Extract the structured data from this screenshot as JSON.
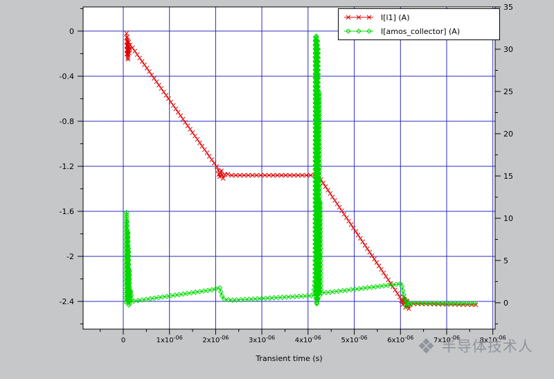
{
  "page": {
    "background": "#c6c7c9",
    "plot_background": "#ffffff",
    "border_color": "#000000"
  },
  "watermark": {
    "logo_icon": "diamond-cluster-icon",
    "text": "半导体技术人",
    "color": "#8f959d"
  },
  "chart_data": {
    "type": "line",
    "xlabel": "Transient time (s)",
    "grid": {
      "on": true,
      "color": "#2a2ac0"
    },
    "legend_position": "top-right-inside",
    "x_axis": {
      "unit": "us",
      "min_us": -0.87,
      "max_us": 8.05,
      "ticks": [
        {
          "v": 0,
          "label": "0"
        },
        {
          "v": 1,
          "label": "1x10^-06"
        },
        {
          "v": 2,
          "label": "2x10^-06"
        },
        {
          "v": 3,
          "label": "3x10^-06"
        },
        {
          "v": 4,
          "label": "4x10^-06"
        },
        {
          "v": 5,
          "label": "5x10^-06"
        },
        {
          "v": 6,
          "label": "6x10^-06"
        },
        {
          "v": 7,
          "label": "7x10^-06"
        },
        {
          "v": 8,
          "label": "8x10^-06"
        }
      ]
    },
    "left_axis": {
      "min": -2.646,
      "max": 0.215,
      "ticks": [
        {
          "v": 0,
          "label": "0"
        },
        {
          "v": -0.4,
          "label": "-0.4"
        },
        {
          "v": -0.8,
          "label": "-0.8"
        },
        {
          "v": -1.2,
          "label": "-1.2"
        },
        {
          "v": -1.6,
          "label": "-1.6"
        },
        {
          "v": -2,
          "label": "-2"
        },
        {
          "v": -2.4,
          "label": "-2.4"
        }
      ]
    },
    "right_axis": {
      "min": -3.12,
      "max": 35,
      "ticks": [
        {
          "v": 35,
          "label": "35"
        },
        {
          "v": 30,
          "label": "30"
        },
        {
          "v": 25,
          "label": "25"
        },
        {
          "v": 20,
          "label": "20"
        },
        {
          "v": 15,
          "label": "15"
        },
        {
          "v": 10,
          "label": "10"
        },
        {
          "v": 5,
          "label": "5"
        },
        {
          "v": 0,
          "label": "0"
        }
      ]
    },
    "series": [
      {
        "name": "I[l1] (A)",
        "color": "#e00000",
        "marker": "x",
        "axis": "left",
        "points": [
          [
            0.07,
            -0.02
          ],
          [
            0.08,
            -0.22
          ],
          [
            0.09,
            -0.05
          ],
          [
            0.1,
            -0.26
          ],
          [
            0.11,
            -0.08
          ],
          [
            0.13,
            -0.2
          ],
          [
            0.15,
            -0.12
          ],
          [
            2.05,
            -1.22
          ],
          [
            2.08,
            -1.3
          ],
          [
            2.12,
            -1.23
          ],
          [
            2.16,
            -1.31
          ],
          [
            2.22,
            -1.26
          ],
          [
            2.3,
            -1.28
          ],
          [
            4.2,
            -1.28
          ],
          [
            4.28,
            -1.32
          ],
          [
            6.0,
            -2.37
          ],
          [
            6.05,
            -2.43
          ],
          [
            6.08,
            -2.35
          ],
          [
            6.11,
            -2.46
          ],
          [
            6.14,
            -2.38
          ],
          [
            6.18,
            -2.47
          ],
          [
            6.22,
            -2.42
          ],
          [
            7.65,
            -2.43
          ]
        ]
      },
      {
        "name": "I[amos_collector] (A)",
        "color": "#00d800",
        "marker": "diamond",
        "axis": "right",
        "points": [
          [
            0.05,
            0.1
          ],
          [
            0.06,
            6
          ],
          [
            0.07,
            10.8
          ],
          [
            0.08,
            2
          ],
          [
            0.085,
            9.8
          ],
          [
            0.09,
            0.5
          ],
          [
            0.1,
            8.5
          ],
          [
            0.105,
            0
          ],
          [
            0.11,
            6.5
          ],
          [
            0.12,
            -0.3
          ],
          [
            0.13,
            4
          ],
          [
            0.14,
            -0.2
          ],
          [
            0.16,
            1.5
          ],
          [
            0.18,
            0.15
          ],
          [
            1.95,
            1.55
          ],
          [
            2.03,
            1.7
          ],
          [
            2.09,
            1.78
          ],
          [
            2.13,
            0.9
          ],
          [
            2.18,
            0.42
          ],
          [
            2.35,
            0.3
          ],
          [
            4.12,
            0.85
          ],
          [
            4.15,
            3
          ],
          [
            4.16,
            31.5
          ],
          [
            4.17,
            0.5
          ],
          [
            4.18,
            31.7
          ],
          [
            4.19,
            -0.3
          ],
          [
            4.2,
            31.2
          ],
          [
            4.21,
            0.2
          ],
          [
            4.22,
            30
          ],
          [
            4.23,
            1
          ],
          [
            4.24,
            25
          ],
          [
            4.25,
            0.8
          ],
          [
            4.26,
            12
          ],
          [
            4.28,
            1.15
          ],
          [
            4.4,
            1.2
          ],
          [
            5.95,
            2.2
          ],
          [
            6.02,
            2.28
          ],
          [
            6.06,
            1.2
          ],
          [
            6.1,
            0.2
          ],
          [
            6.13,
            -0.45
          ],
          [
            6.16,
            0.15
          ],
          [
            6.2,
            -0.3
          ],
          [
            6.25,
            -0.05
          ],
          [
            7.65,
            -0.08
          ]
        ]
      }
    ]
  }
}
